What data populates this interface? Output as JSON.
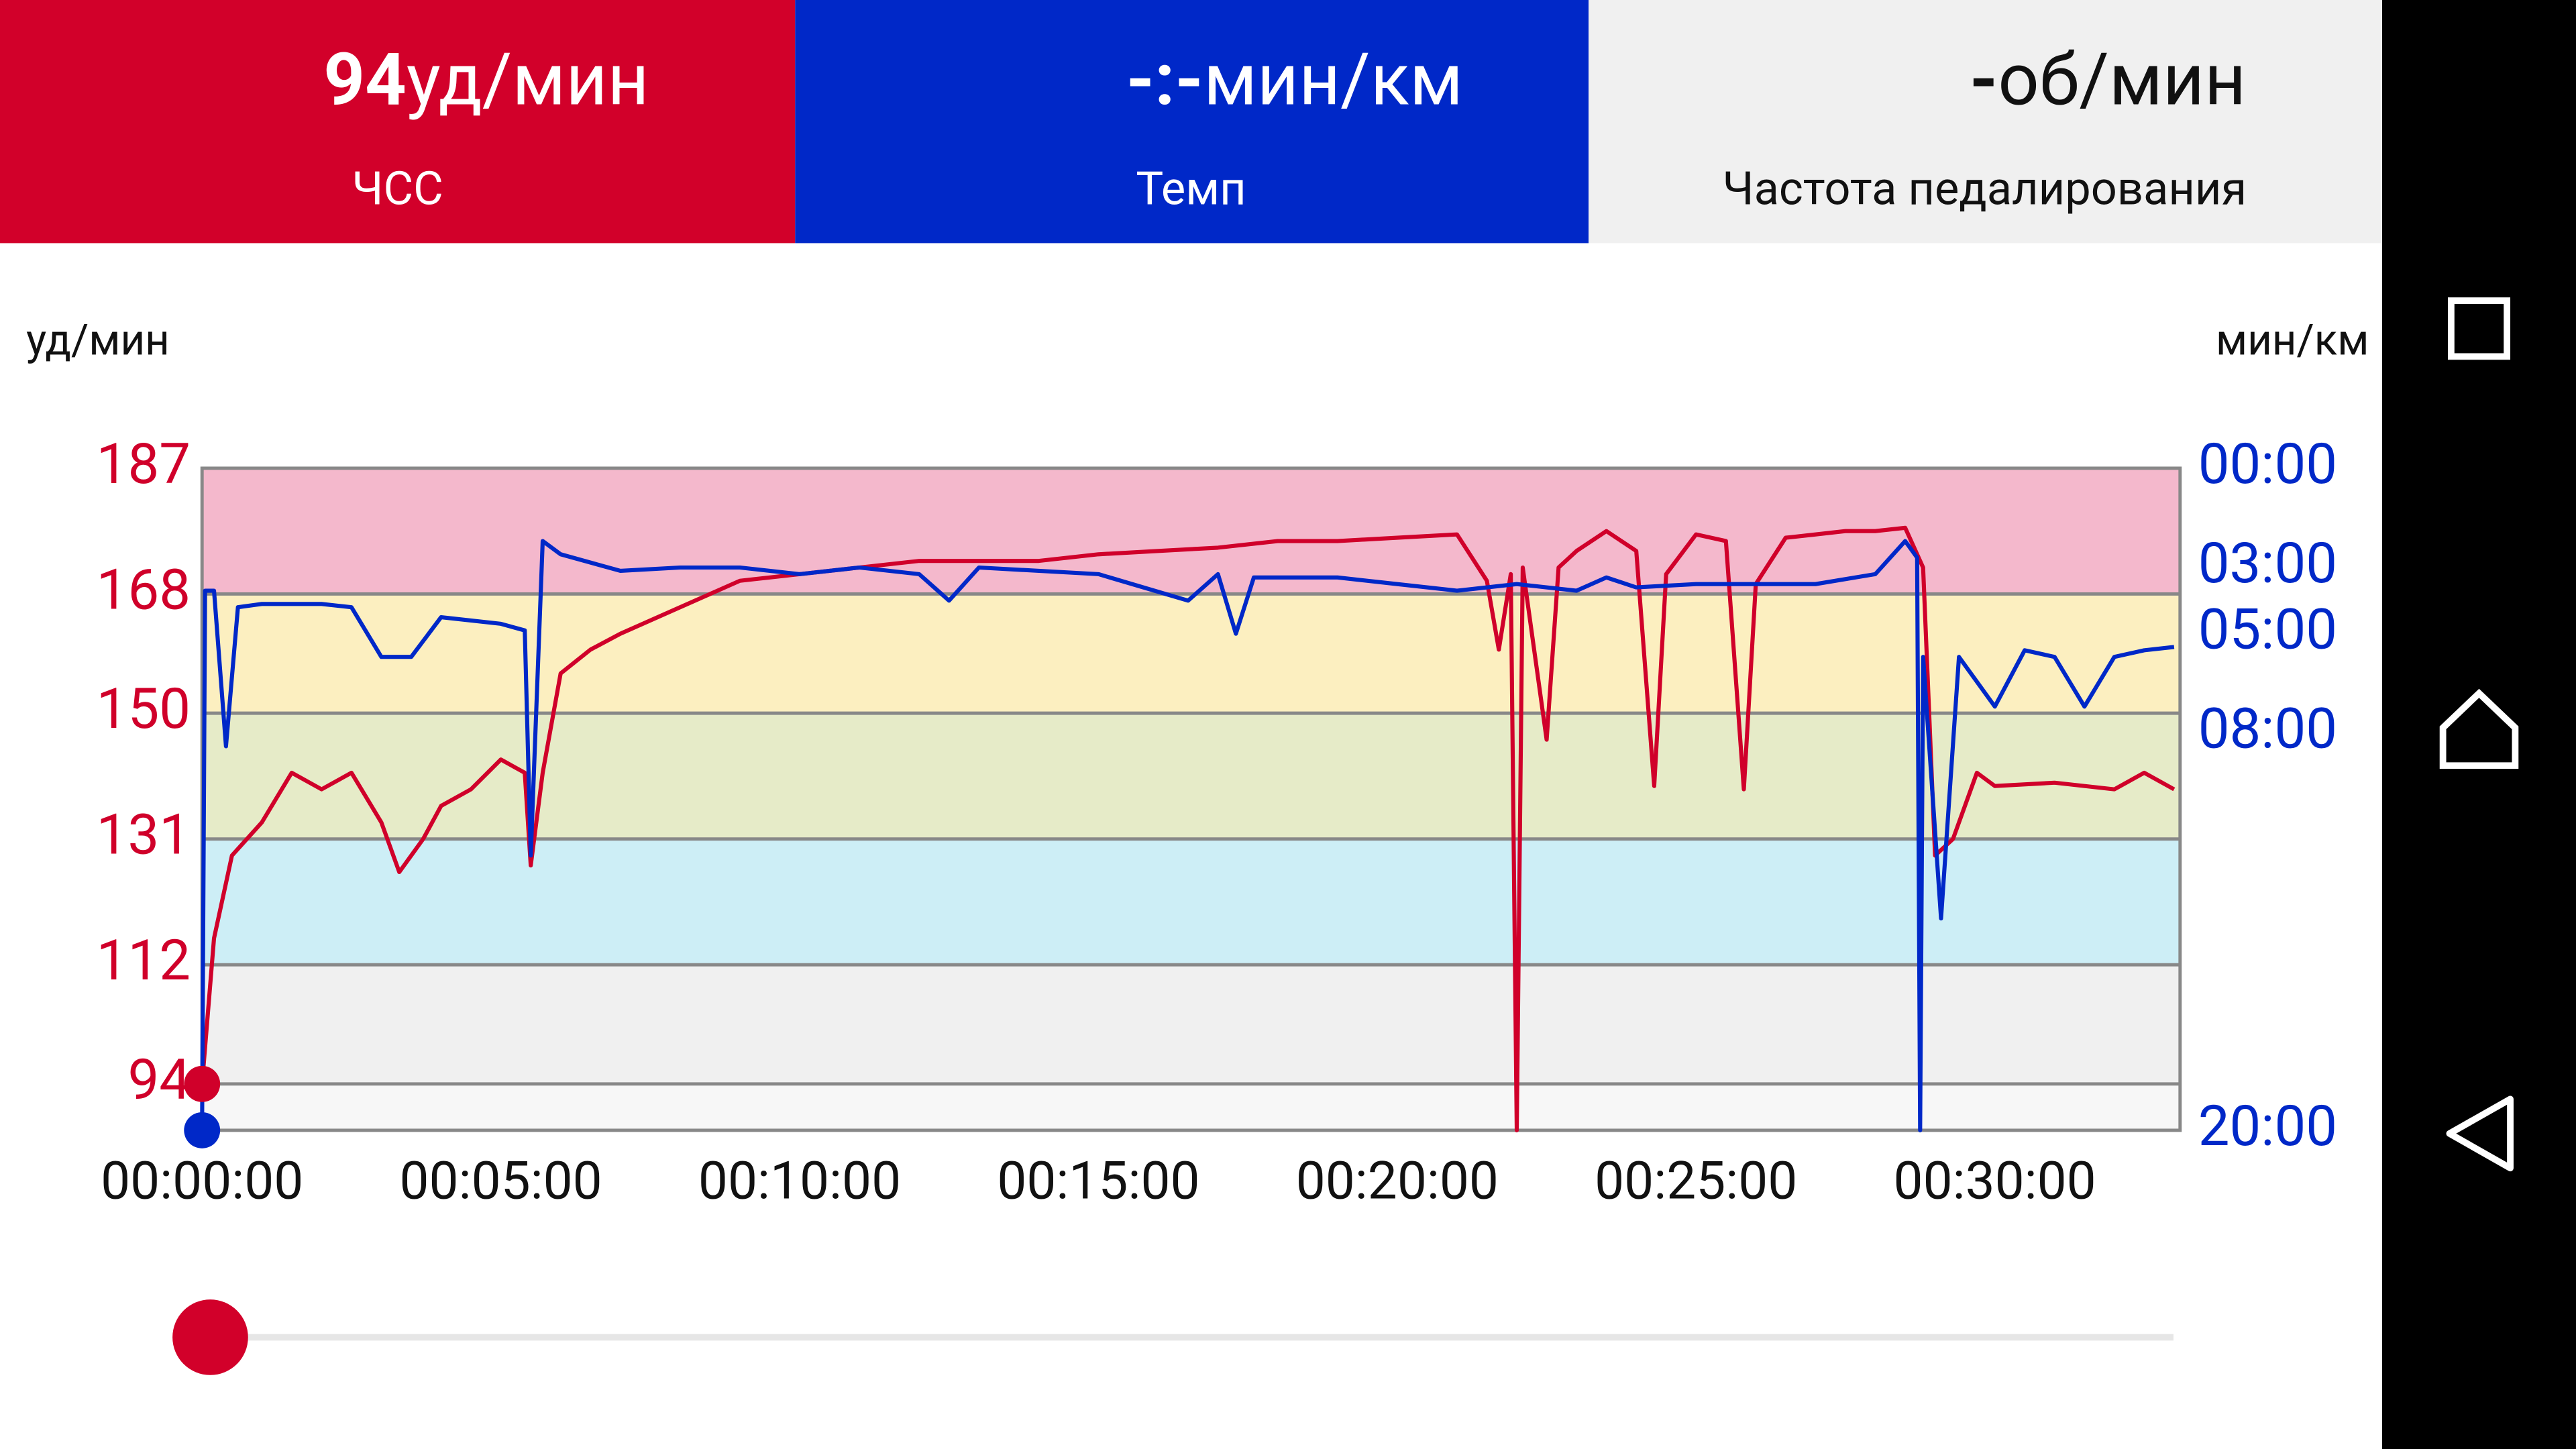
{
  "header": {
    "tiles": [
      {
        "value": "94",
        "unit": "уд/мин",
        "label": "ЧСС"
      },
      {
        "value": "-:-",
        "unit": "мин/км",
        "label": "Темп"
      },
      {
        "value": "-",
        "unit": "об/мин",
        "label": "Частота педалирования"
      }
    ]
  },
  "chart_data": {
    "type": "line",
    "y_label": "уд/мин",
    "y2_label": "мин/км",
    "xlim": [
      0,
      33.1
    ],
    "xticks": [
      {
        "value": 0,
        "label": "00:00:00"
      },
      {
        "value": 5,
        "label": "00:05:00"
      },
      {
        "value": 10,
        "label": "00:10:00"
      },
      {
        "value": 15,
        "label": "00:15:00"
      },
      {
        "value": 20,
        "label": "00:20:00"
      },
      {
        "value": 25,
        "label": "00:25:00"
      },
      {
        "value": 30,
        "label": "00:30:00"
      }
    ],
    "ylim": [
      87,
      187
    ],
    "yticks": [
      94,
      112,
      131,
      150,
      168,
      187
    ],
    "zone_colors": [
      "#f0f0f0",
      "#cdeef6",
      "#e6ebc8",
      "#fcefc0",
      "#f4b8cc"
    ],
    "below_zone_color": "#f7f7f7",
    "y2lim": [
      20,
      0
    ],
    "y2ticks": [
      {
        "value": 0,
        "label": "00:00"
      },
      {
        "value": 3,
        "label": "03:00"
      },
      {
        "value": 5,
        "label": "05:00"
      },
      {
        "value": 8,
        "label": "08:00"
      },
      {
        "value": 20,
        "label": "20:00"
      }
    ],
    "series": [
      {
        "name": "ЧСС",
        "color": "#d0002a",
        "x": [
          0,
          0.2,
          0.5,
          1,
          1.5,
          2,
          2.5,
          3,
          3.3,
          3.7,
          4,
          4.5,
          5,
          5.4,
          5.5,
          5.7,
          6,
          6.5,
          7,
          7.5,
          8,
          9,
          10,
          11,
          12,
          13,
          14,
          15,
          16,
          17,
          18,
          19,
          20,
          21,
          21.5,
          21.7,
          21.9,
          22,
          22.1,
          22.5,
          22.7,
          23,
          23.5,
          24,
          24.3,
          24.5,
          25,
          25.5,
          25.8,
          26,
          26.5,
          27,
          27.5,
          28,
          28.5,
          28.8,
          29,
          29.3,
          29.7,
          30,
          31,
          32,
          32.5,
          33
        ],
        "values": [
          94,
          116,
          128.5,
          133.5,
          141,
          138.5,
          141,
          133.5,
          126,
          131,
          136,
          138.5,
          143,
          141,
          127,
          141,
          156,
          159.6,
          162,
          164,
          166,
          170,
          171,
          172,
          173,
          173,
          173,
          174,
          174.5,
          175,
          176,
          176,
          176.5,
          177,
          170,
          159.6,
          171,
          87,
          172,
          146,
          172,
          174.5,
          177.5,
          174.5,
          139,
          171,
          177,
          176,
          138.5,
          169.5,
          176.5,
          177,
          177.5,
          177.5,
          178,
          172,
          128.5,
          131,
          141,
          139,
          139.5,
          138.5,
          141,
          138.5
        ]
      },
      {
        "name": "Темп",
        "color": "#0028c8",
        "axis": "y2",
        "x": [
          0,
          0.05,
          0.2,
          0.4,
          0.6,
          1,
          2,
          2.5,
          3,
          3.5,
          4,
          5,
          5.4,
          5.5,
          5.7,
          6,
          7,
          8,
          9,
          10,
          11,
          12,
          12.5,
          13,
          15,
          16.5,
          17,
          17.3,
          17.6,
          19,
          20,
          21,
          22,
          23,
          23.5,
          24,
          25,
          26,
          27,
          28,
          28.5,
          28.7,
          28.75,
          28.8,
          29.1,
          29.4,
          30,
          30.5,
          31,
          31.5,
          32,
          32.5,
          33
        ],
        "values": [
          20,
          3.7,
          3.7,
          8.4,
          4.2,
          4.1,
          4.1,
          4.2,
          5.7,
          5.7,
          4.5,
          4.7,
          4.9,
          11.7,
          2.2,
          2.6,
          3.1,
          3,
          3,
          3.2,
          3,
          3.2,
          4,
          3,
          3.2,
          4,
          3.2,
          5,
          3.3,
          3.3,
          3.5,
          3.7,
          3.5,
          3.7,
          3.3,
          3.6,
          3.5,
          3.5,
          3.5,
          3.2,
          2.2,
          2.7,
          20,
          5.7,
          13.6,
          5.7,
          7.2,
          5.5,
          5.7,
          7.2,
          5.7,
          5.5,
          5.4
        ]
      }
    ]
  }
}
